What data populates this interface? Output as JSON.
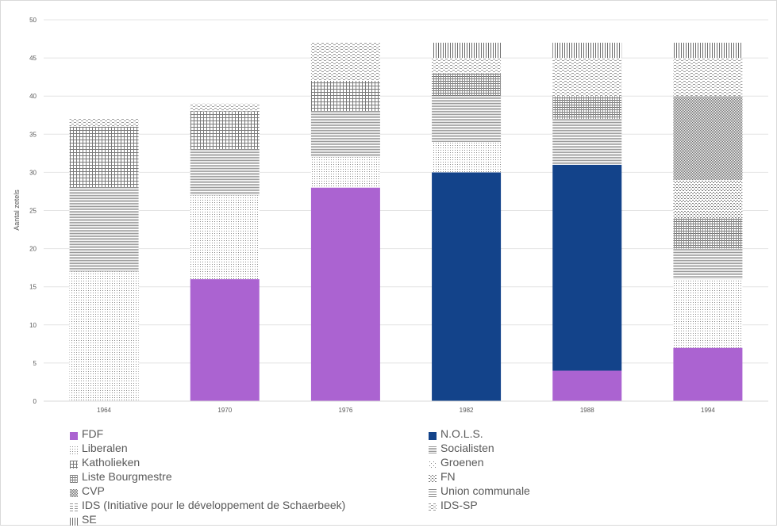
{
  "chart_data": {
    "type": "bar",
    "stacked": true,
    "ylabel": "Aantal zetels",
    "ylim": [
      0,
      50
    ],
    "yticks": [
      0,
      5,
      10,
      15,
      20,
      25,
      30,
      35,
      40,
      45,
      50
    ],
    "grid": true,
    "legend_position": "bottom",
    "categories": [
      "1964",
      "1970",
      "1976",
      "1982",
      "1988",
      "1994"
    ],
    "series": [
      {
        "name": "FDF",
        "values": [
          0,
          16,
          28,
          0,
          4,
          7
        ],
        "fill": "solid",
        "color": "#ab63d1"
      },
      {
        "name": "N.O.L.S.",
        "values": [
          0,
          0,
          0,
          30,
          27,
          0
        ],
        "fill": "solid",
        "color": "#13438a"
      },
      {
        "name": "Liberalen",
        "values": [
          17,
          11,
          4,
          4,
          0,
          9
        ],
        "fill": "dots-fine",
        "color": "#7f7f7f"
      },
      {
        "name": "Socialisten",
        "values": [
          11,
          6,
          6,
          6,
          6,
          4
        ],
        "fill": "hlines-dense",
        "color": "#7f7f7f"
      },
      {
        "name": "Katholieken",
        "values": [
          8,
          5,
          4,
          0,
          0,
          0
        ],
        "fill": "grid",
        "color": "#7f7f7f"
      },
      {
        "name": "Groenen",
        "values": [
          0,
          0,
          0,
          0,
          0,
          0
        ],
        "fill": "dots-sparse",
        "color": "#7f7f7f"
      },
      {
        "name": "Liste Bourgmestre",
        "values": [
          0,
          0,
          0,
          3,
          3,
          4
        ],
        "fill": "grid-fine",
        "color": "#7f7f7f"
      },
      {
        "name": "FN",
        "values": [
          0,
          0,
          0,
          0,
          0,
          5
        ],
        "fill": "dots-coarse",
        "color": "#7f7f7f"
      },
      {
        "name": "CVP",
        "values": [
          0,
          0,
          0,
          0,
          0,
          11
        ],
        "fill": "checker",
        "color": "#7f7f7f"
      },
      {
        "name": "Union communale",
        "values": [
          0,
          0,
          0,
          0,
          0,
          0
        ],
        "fill": "hlines",
        "color": "#7f7f7f"
      },
      {
        "name": "IDS (Initiative pour le développement de Schaerbeek)",
        "values": [
          0,
          0,
          0,
          0,
          0,
          0
        ],
        "fill": "hdash",
        "color": "#7f7f7f"
      },
      {
        "name": "IDS-SP",
        "values": [
          1,
          1,
          5,
          2,
          5,
          5
        ],
        "fill": "wave",
        "color": "#7f7f7f"
      },
      {
        "name": "SE",
        "values": [
          0,
          0,
          0,
          2,
          2,
          2
        ],
        "fill": "vlines",
        "color": "#7f7f7f"
      }
    ]
  }
}
